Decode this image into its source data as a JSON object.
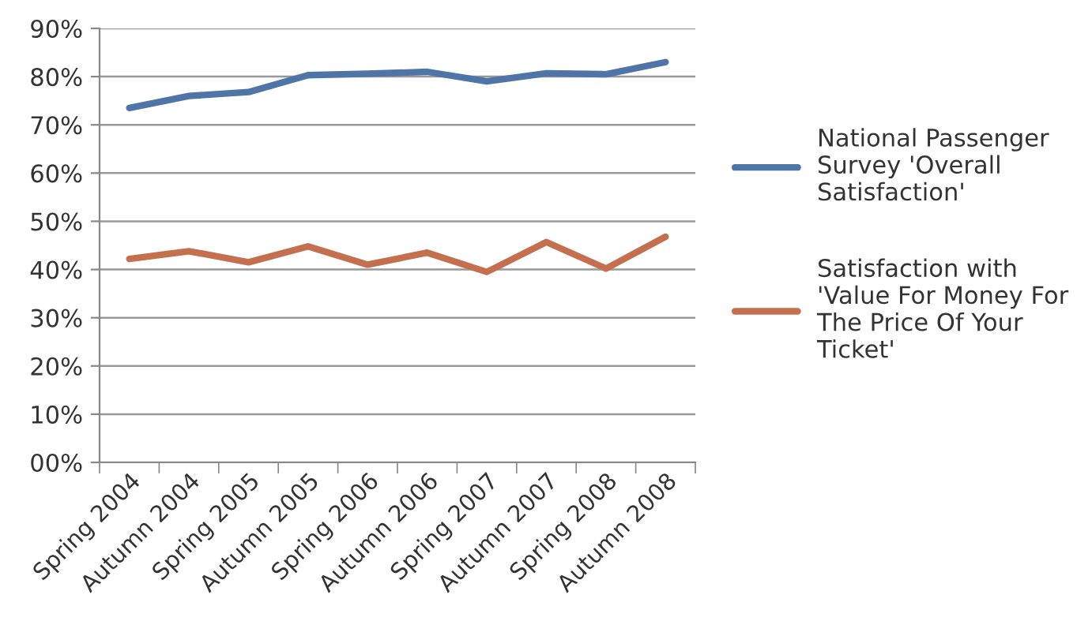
{
  "chart_data": {
    "type": "line",
    "categories": [
      "Spring 2004",
      "Autumn 2004",
      "Spring 2005",
      "Autumn 2005",
      "Spring 2006",
      "Autumn 2006",
      "Spring 2007",
      "Autumn 2007",
      "Spring 2008",
      "Autumn 2008"
    ],
    "series": [
      {
        "name": "National Passenger\nSurvey 'Overall\nSatisfaction'",
        "color": "#4e74a8",
        "values": [
          73.5,
          76,
          76.8,
          80.3,
          80.6,
          81,
          79,
          80.7,
          80.5,
          83
        ]
      },
      {
        "name": "Satisfaction with\n'Value For Money For\nThe Price Of Your\nTicket'",
        "color": "#c4704f",
        "values": [
          42.2,
          43.8,
          41.5,
          44.8,
          41,
          43.5,
          39.5,
          45.7,
          40.2,
          46.8
        ]
      }
    ],
    "ylim": [
      0,
      90
    ],
    "yticks": [
      {
        "value": 0,
        "label": "00%"
      },
      {
        "value": 10,
        "label": "10%"
      },
      {
        "value": 20,
        "label": "20%"
      },
      {
        "value": 30,
        "label": "30%"
      },
      {
        "value": 40,
        "label": "40%"
      },
      {
        "value": 50,
        "label": "50%"
      },
      {
        "value": 60,
        "label": "60%"
      },
      {
        "value": 70,
        "label": "70%"
      },
      {
        "value": 80,
        "label": "80%"
      },
      {
        "value": 90,
        "label": "90%"
      }
    ],
    "grid": "y",
    "legend": "right",
    "marker": "none",
    "line_style": "solid"
  }
}
